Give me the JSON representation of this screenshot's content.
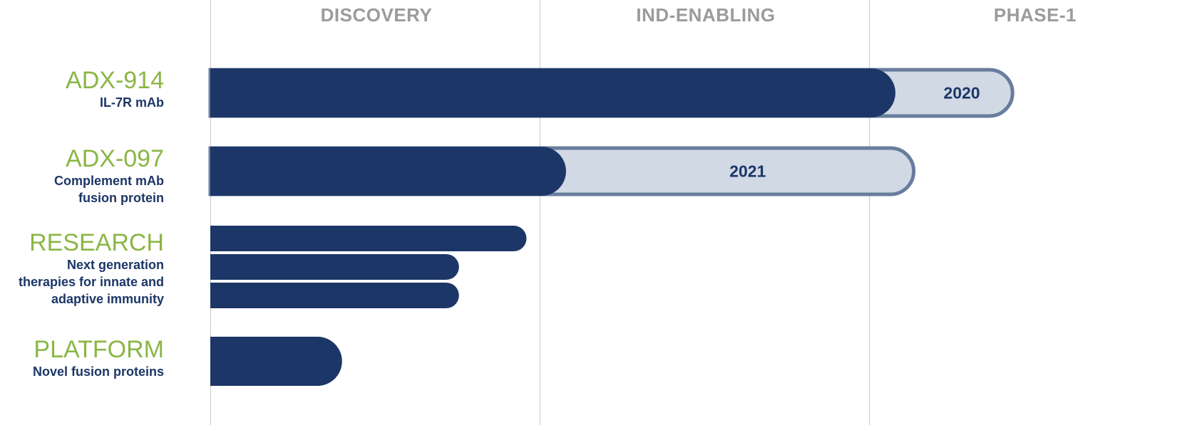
{
  "chart_data": {
    "type": "bar",
    "orientation": "horizontal",
    "phases": [
      "DISCOVERY",
      "IND-ENABLING",
      "PHASE-1"
    ],
    "colors": {
      "completed": "#1c3667",
      "planned_fill": "#d0d9e4",
      "planned_border": "#687d9d",
      "name": "#8ab645",
      "subtitle": "#1c3667",
      "phase_header": "#9b9b9b",
      "gridline": "#c8c8c8"
    },
    "rows": [
      {
        "name": "ADX-914",
        "subtitle": "IL-7R mAb",
        "bars": [
          {
            "progress": 2.08
          }
        ],
        "planned": {
          "progress": 2.44,
          "year": "2020"
        }
      },
      {
        "name": "ADX-097",
        "subtitle": "Complement mAb\nfusion protein",
        "bars": [
          {
            "progress": 1.08
          }
        ],
        "planned": {
          "progress": 2.14,
          "year": "2021"
        }
      },
      {
        "name": "RESEARCH",
        "subtitle": "Next generation\ntherapies for innate and\nadaptive immunity",
        "bars": [
          {
            "progress": 0.96
          },
          {
            "progress": 0.755
          },
          {
            "progress": 0.755
          }
        ]
      },
      {
        "name": "PLATFORM",
        "subtitle": "Novel fusion proteins",
        "bars": [
          {
            "progress": 0.4
          }
        ]
      }
    ]
  }
}
